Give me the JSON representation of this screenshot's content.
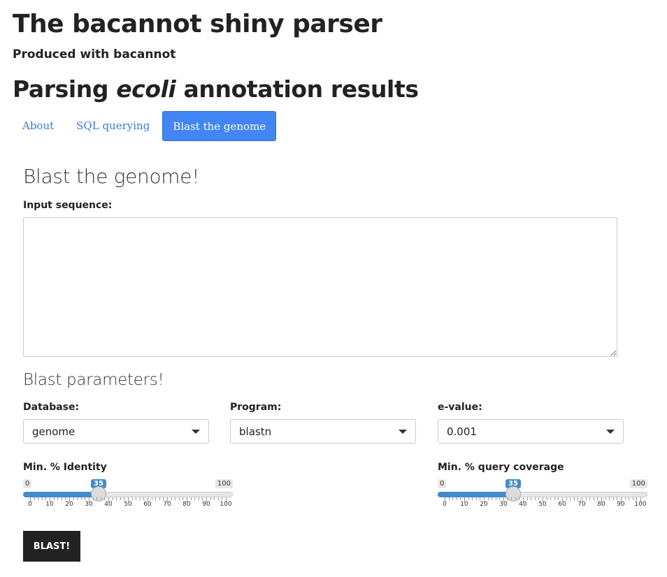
{
  "header": {
    "title": "The bacannot shiny parser",
    "subtitle": "Produced with bacannot",
    "parsing_prefix": "Parsing ",
    "parsing_organism": "ecoli",
    "parsing_suffix": " annotation results"
  },
  "tabs": [
    {
      "label": "About",
      "active": false
    },
    {
      "label": "SQL querying",
      "active": false
    },
    {
      "label": "Blast the genome",
      "active": true
    }
  ],
  "blast": {
    "heading": "Blast the genome!",
    "input_label": "Input sequence:",
    "input_value": "",
    "params_heading": "Blast parameters!",
    "database": {
      "label": "Database:",
      "value": "genome"
    },
    "program": {
      "label": "Program:",
      "value": "blastn"
    },
    "evalue": {
      "label": "e-value:",
      "value": "0.001"
    },
    "identity": {
      "label": "Min. % Identity",
      "min": "0",
      "max": "100",
      "value": "35",
      "value_num": 35
    },
    "coverage": {
      "label": "Min. % query coverage",
      "min": "0",
      "max": "100",
      "value": "35",
      "value_num": 35
    },
    "tick_labels": [
      "0",
      "10",
      "20",
      "30",
      "40",
      "50",
      "60",
      "70",
      "80",
      "90",
      "100"
    ],
    "button_label": "BLAST!"
  },
  "colors": {
    "accent": "#428bca",
    "tab_active": "#4285f4",
    "tab_link": "#3a7bd5",
    "button": "#222222"
  }
}
